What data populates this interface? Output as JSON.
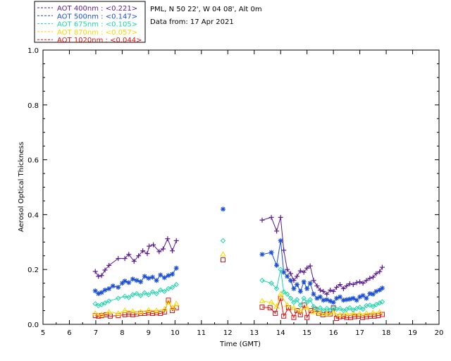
{
  "header": {
    "site": "PML, N 50 22', W 04 08', Alt 0m",
    "date": "Data from: 17 Apr 2021"
  },
  "chart_data": {
    "type": "scatter",
    "title": "",
    "xlabel": "Time (GMT)",
    "ylabel": "Aerosol Optical Thickness",
    "xlim": [
      5,
      20
    ],
    "ylim": [
      0.0,
      1.0
    ],
    "xticks": [
      "5",
      "6",
      "7",
      "8",
      "9",
      "10",
      "11",
      "12",
      "13",
      "14",
      "15",
      "16",
      "17",
      "18",
      "19",
      "20"
    ],
    "yticks": [
      "0.0",
      "0.2",
      "0.4",
      "0.6",
      "0.8",
      "1.0"
    ],
    "grid": false,
    "legend_position": "top-left, above plot",
    "series": [
      {
        "name": "AOT  400nm : <0.221>",
        "color": "#5a1a8c",
        "marker": "plus",
        "x": [
          6.98,
          7.1,
          7.22,
          7.35,
          7.5,
          7.85,
          8.1,
          8.25,
          8.45,
          8.62,
          8.78,
          8.95,
          9.02,
          9.18,
          9.4,
          9.55,
          9.72,
          9.9,
          10.05,
          13.3,
          13.65,
          13.85,
          14.0,
          14.12,
          14.25,
          14.38,
          14.5,
          14.62,
          14.75,
          14.88,
          15.0,
          15.12,
          15.25,
          15.38,
          15.5,
          15.62,
          15.75,
          15.88,
          16.0,
          16.12,
          16.25,
          16.38,
          16.5,
          16.62,
          16.75,
          16.88,
          17.0,
          17.12,
          17.25,
          17.38,
          17.5,
          17.62,
          17.75,
          17.85
        ],
        "values": [
          0.193,
          0.175,
          0.178,
          0.198,
          0.215,
          0.24,
          0.24,
          0.255,
          0.23,
          0.25,
          0.268,
          0.258,
          0.285,
          0.29,
          0.265,
          0.275,
          0.312,
          0.268,
          0.305,
          0.38,
          0.39,
          0.34,
          0.39,
          0.27,
          0.2,
          0.185,
          0.16,
          0.175,
          0.195,
          0.19,
          0.205,
          0.213,
          0.16,
          0.14,
          0.125,
          0.12,
          0.11,
          0.125,
          0.12,
          0.135,
          0.145,
          0.13,
          0.14,
          0.148,
          0.145,
          0.152,
          0.155,
          0.15,
          0.16,
          0.168,
          0.172,
          0.185,
          0.192,
          0.208
        ]
      },
      {
        "name": "AOT  500nm : <0.147>",
        "color": "#1a4fd6",
        "marker": "asterisk",
        "x": [
          6.98,
          7.1,
          7.22,
          7.35,
          7.5,
          7.65,
          7.85,
          8.0,
          8.1,
          8.25,
          8.4,
          8.55,
          8.7,
          8.85,
          9.0,
          9.15,
          9.3,
          9.45,
          9.6,
          9.75,
          9.9,
          10.05,
          11.82,
          13.3,
          13.65,
          13.85,
          14.0,
          14.12,
          14.25,
          14.38,
          14.5,
          14.62,
          14.75,
          14.88,
          15.0,
          15.12,
          15.25,
          15.38,
          15.5,
          15.62,
          15.75,
          15.88,
          16.0,
          16.12,
          16.25,
          16.38,
          16.5,
          16.62,
          16.75,
          16.88,
          17.0,
          17.12,
          17.25,
          17.38,
          17.5,
          17.62,
          17.75,
          17.85
        ],
        "values": [
          0.122,
          0.112,
          0.116,
          0.125,
          0.13,
          0.14,
          0.135,
          0.15,
          0.158,
          0.152,
          0.165,
          0.16,
          0.155,
          0.175,
          0.168,
          0.172,
          0.16,
          0.18,
          0.17,
          0.178,
          0.183,
          0.205,
          0.42,
          0.255,
          0.262,
          0.215,
          0.305,
          0.19,
          0.175,
          0.16,
          0.13,
          0.145,
          0.12,
          0.155,
          0.13,
          0.15,
          0.11,
          0.095,
          0.1,
          0.088,
          0.09,
          0.085,
          0.08,
          0.095,
          0.1,
          0.088,
          0.09,
          0.092,
          0.095,
          0.088,
          0.1,
          0.105,
          0.095,
          0.112,
          0.11,
          0.12,
          0.125,
          0.132
        ]
      },
      {
        "name": "AOT  675nm : <0.105>",
        "color": "#1ad6a8",
        "marker": "diamond",
        "x": [
          6.98,
          7.1,
          7.22,
          7.35,
          7.5,
          7.85,
          8.1,
          8.25,
          8.4,
          8.55,
          8.7,
          8.85,
          9.0,
          9.15,
          9.3,
          9.45,
          9.6,
          9.75,
          9.9,
          10.05,
          11.82,
          13.3,
          13.65,
          13.85,
          14.0,
          14.12,
          14.25,
          14.38,
          14.5,
          14.62,
          14.75,
          14.88,
          15.0,
          15.12,
          15.25,
          15.38,
          15.5,
          15.62,
          15.75,
          15.88,
          16.0,
          16.12,
          16.25,
          16.38,
          16.5,
          16.62,
          16.75,
          16.88,
          17.0,
          17.12,
          17.25,
          17.38,
          17.5,
          17.62,
          17.75,
          17.85
        ],
        "values": [
          0.075,
          0.068,
          0.072,
          0.078,
          0.085,
          0.095,
          0.102,
          0.098,
          0.108,
          0.112,
          0.105,
          0.115,
          0.108,
          0.118,
          0.112,
          0.125,
          0.12,
          0.13,
          0.135,
          0.145,
          0.305,
          0.16,
          0.15,
          0.13,
          0.2,
          0.118,
          0.11,
          0.095,
          0.08,
          0.09,
          0.07,
          0.095,
          0.08,
          0.09,
          0.065,
          0.055,
          0.06,
          0.05,
          0.058,
          0.052,
          0.06,
          0.055,
          0.058,
          0.05,
          0.055,
          0.06,
          0.052,
          0.058,
          0.062,
          0.055,
          0.068,
          0.07,
          0.065,
          0.072,
          0.078,
          0.082
        ]
      },
      {
        "name": "AOT  870nm : <0.057>",
        "color": "#f5d800",
        "marker": "triangle",
        "x": [
          6.98,
          7.22,
          7.5,
          7.85,
          8.1,
          8.4,
          8.7,
          9.0,
          9.3,
          9.6,
          9.75,
          9.9,
          10.05,
          11.82,
          13.3,
          13.65,
          13.85,
          14.0,
          14.25,
          14.5,
          14.75,
          15.0,
          15.25,
          15.5,
          15.75,
          16.0,
          16.25,
          16.5,
          16.75,
          17.0,
          17.25,
          17.5,
          17.75
        ],
        "values": [
          0.04,
          0.035,
          0.045,
          0.04,
          0.05,
          0.048,
          0.045,
          0.052,
          0.05,
          0.055,
          0.08,
          0.06,
          0.075,
          0.255,
          0.085,
          0.08,
          0.065,
          0.11,
          0.07,
          0.06,
          0.05,
          0.06,
          0.045,
          0.04,
          0.038,
          0.042,
          0.035,
          0.038,
          0.04,
          0.038,
          0.04,
          0.042,
          0.045
        ]
      },
      {
        "name": "AOT 1020nm : <0.044>",
        "color": "#e01010",
        "marker": "square",
        "x": [
          6.98,
          7.1,
          7.22,
          7.4,
          7.55,
          7.85,
          8.1,
          8.25,
          8.4,
          8.55,
          8.7,
          8.85,
          9.0,
          9.15,
          9.3,
          9.45,
          9.6,
          9.75,
          9.9,
          10.05,
          11.82,
          13.3,
          13.6,
          13.8,
          14.0,
          14.12,
          14.3,
          14.5,
          14.62,
          14.75,
          14.9,
          15.0,
          15.15,
          15.3,
          15.45,
          15.6,
          15.75,
          15.88,
          16.0,
          16.12,
          16.25,
          16.38,
          16.5,
          16.65,
          16.8,
          16.95,
          17.1,
          17.25,
          17.4,
          17.55,
          17.7,
          17.85
        ],
        "values": [
          0.032,
          0.03,
          0.032,
          0.035,
          0.03,
          0.032,
          0.035,
          0.038,
          0.035,
          0.038,
          0.04,
          0.04,
          0.042,
          0.04,
          0.042,
          0.04,
          0.045,
          0.088,
          0.05,
          0.06,
          0.235,
          0.063,
          0.06,
          0.04,
          0.095,
          0.03,
          0.06,
          0.025,
          0.05,
          0.035,
          0.07,
          0.025,
          0.05,
          0.055,
          0.04,
          0.035,
          0.038,
          0.038,
          0.06,
          0.022,
          0.028,
          0.03,
          0.025,
          0.025,
          0.028,
          0.03,
          0.025,
          0.028,
          0.03,
          0.03,
          0.032,
          0.036
        ]
      }
    ]
  }
}
